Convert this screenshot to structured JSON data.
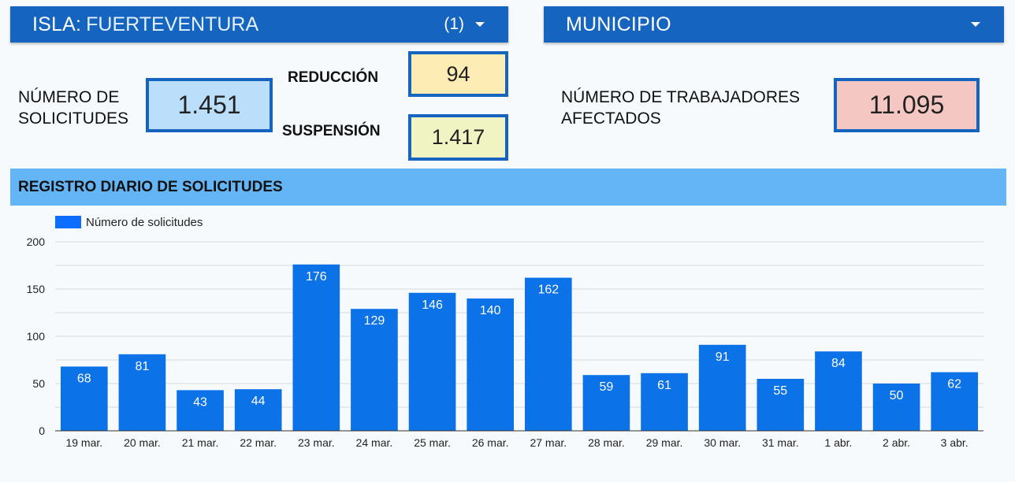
{
  "filters": {
    "isla": {
      "label": "ISLA:",
      "value": "FUERTEVENTURA",
      "count": "(1)",
      "icon": "chevron-down-icon"
    },
    "municipio": {
      "label": "MUNICIPIO",
      "icon": "chevron-down-icon"
    }
  },
  "kpis": {
    "solicitudes": {
      "label_line1": "NÚMERO DE",
      "label_line2": "SOLICITUDES",
      "value": "1.451",
      "color": "#bbdefb"
    },
    "reduccion": {
      "label": "REDUCCIÓN",
      "value": "94",
      "color": "#fdecb3"
    },
    "suspension": {
      "label": "SUSPENSIÓN",
      "value": "1.417",
      "color": "#f0f4c3"
    },
    "trabajadores": {
      "label_line1": "NÚMERO DE TRABAJADORES",
      "label_line2": "AFECTADOS",
      "value": "11.095",
      "color": "#f4c7c3"
    }
  },
  "section": {
    "title": "REGISTRO DIARIO DE SOLICITUDES"
  },
  "chart_data": {
    "type": "bar",
    "categories": [
      "19 mar.",
      "20 mar.",
      "21 mar.",
      "22 mar.",
      "23 mar.",
      "24 mar.",
      "25 mar.",
      "26 mar.",
      "27 mar.",
      "28 mar.",
      "29 mar.",
      "30 mar.",
      "31 mar.",
      "1 abr.",
      "2 abr.",
      "3 abr."
    ],
    "series": [
      {
        "name": "Número de solicitudes",
        "values": [
          68,
          81,
          43,
          44,
          176,
          129,
          146,
          140,
          162,
          59,
          61,
          91,
          55,
          84,
          50,
          62
        ]
      }
    ],
    "ylim": [
      0,
      200
    ],
    "yticks": [
      0,
      50,
      100,
      150,
      200
    ],
    "grid": true,
    "legend": "top-left",
    "bar_color": "#0b72e7"
  }
}
